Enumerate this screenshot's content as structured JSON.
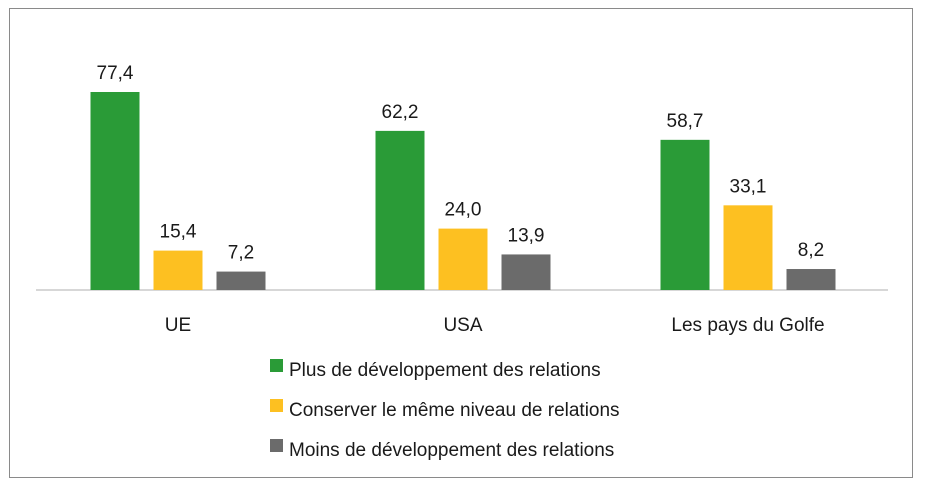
{
  "chart_data": {
    "type": "bar",
    "categories": [
      "UE",
      "USA",
      "Les pays du Golfe"
    ],
    "series": [
      {
        "name": "Plus de développement des relations",
        "color": "#2a9b37",
        "values": [
          77.4,
          62.2,
          58.7
        ],
        "labels": [
          "77,4",
          "62,2",
          "58,7"
        ]
      },
      {
        "name": "Conserver le même niveau de relations",
        "color": "#fdc021",
        "values": [
          15.4,
          24.0,
          33.1
        ],
        "labels": [
          "15,4",
          "24,0",
          "33,1"
        ]
      },
      {
        "name": "Moins de développement des relations",
        "color": "#6b6b6b",
        "values": [
          7.2,
          13.9,
          8.2
        ],
        "labels": [
          "7,2",
          "13,9",
          "8,2"
        ]
      }
    ],
    "ylim": [
      0,
      77.4
    ],
    "grid": false,
    "legend_position": "bottom",
    "title": "",
    "xlabel": "",
    "ylabel": ""
  }
}
